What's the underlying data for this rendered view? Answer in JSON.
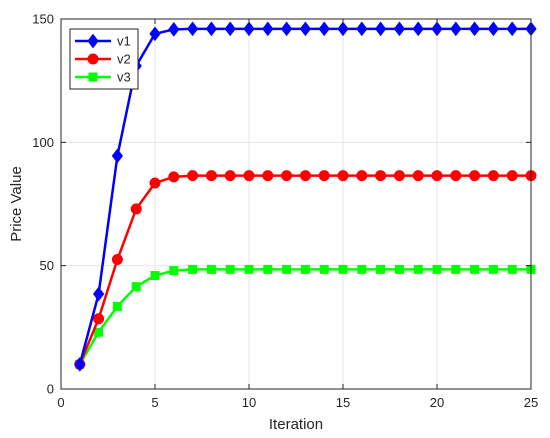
{
  "chart_data": {
    "type": "line",
    "xlabel": "Iteration",
    "ylabel": "Price Value",
    "xlim": [
      0,
      25
    ],
    "ylim": [
      0,
      150
    ],
    "xticks": [
      0,
      5,
      10,
      15,
      20,
      25
    ],
    "yticks": [
      0,
      50,
      100,
      150
    ],
    "grid": true,
    "legend_position": "top-left",
    "x": [
      1,
      2,
      3,
      4,
      5,
      6,
      7,
      8,
      9,
      10,
      11,
      12,
      13,
      14,
      15,
      16,
      17,
      18,
      19,
      20,
      21,
      22,
      23,
      24,
      25
    ],
    "series": [
      {
        "name": "v1",
        "color": "#0000ff",
        "marker": "diamond",
        "values": [
          10,
          38.5,
          94.5,
          131,
          144,
          145.8,
          146,
          146,
          146,
          146,
          146,
          146,
          146,
          146,
          146,
          146,
          146,
          146,
          146,
          146,
          146,
          146,
          146,
          146,
          146
        ]
      },
      {
        "name": "v2",
        "color": "#ff0000",
        "marker": "circle",
        "values": [
          10,
          28.5,
          52.5,
          73,
          83.5,
          86,
          86.5,
          86.5,
          86.5,
          86.5,
          86.5,
          86.5,
          86.5,
          86.5,
          86.5,
          86.5,
          86.5,
          86.5,
          86.5,
          86.5,
          86.5,
          86.5,
          86.5,
          86.5,
          86.5
        ]
      },
      {
        "name": "v3",
        "color": "#00ff00",
        "marker": "square",
        "values": [
          10,
          23,
          33.5,
          41.5,
          46,
          48,
          48.5,
          48.5,
          48.5,
          48.5,
          48.5,
          48.5,
          48.5,
          48.5,
          48.5,
          48.5,
          48.5,
          48.5,
          48.5,
          48.5,
          48.5,
          48.5,
          48.5,
          48.5,
          48.5
        ]
      }
    ]
  }
}
